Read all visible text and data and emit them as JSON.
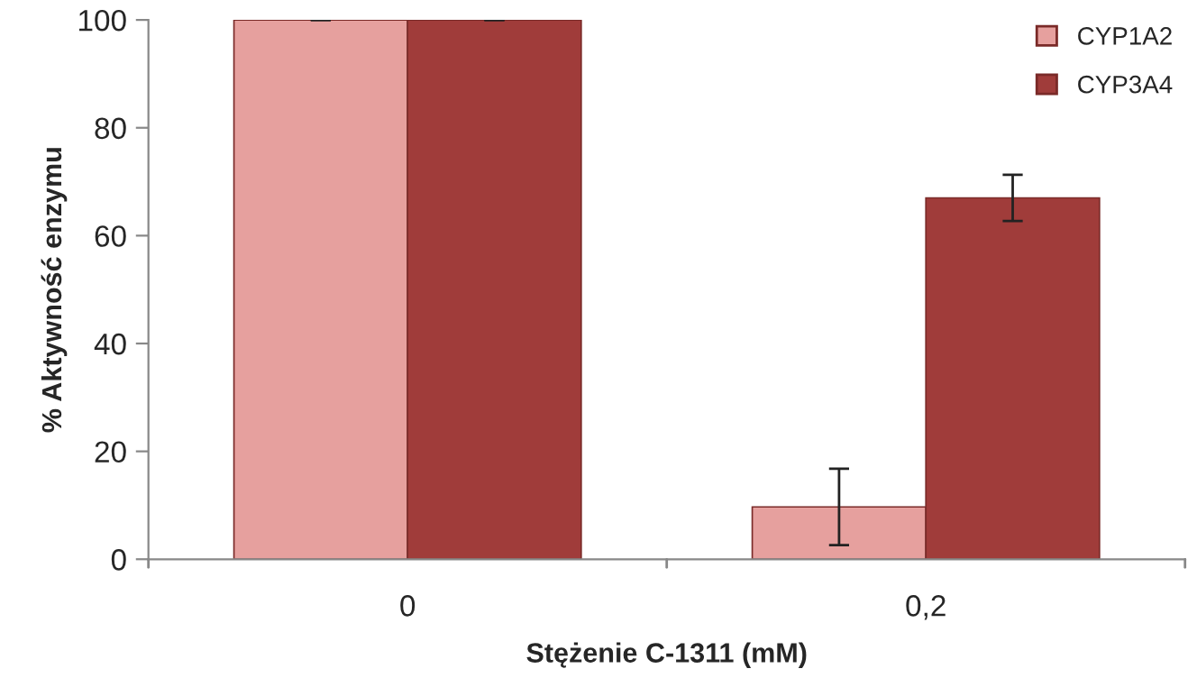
{
  "chart_data": {
    "type": "bar",
    "xlabel": "Stężenie C-1311 (mM)",
    "ylabel": "% Aktywność enzymu",
    "categories": [
      "0",
      "0,2"
    ],
    "series": [
      {
        "name": "CYP1A2",
        "color": "#e6a09e",
        "values": [
          100,
          9.7
        ],
        "errors": [
          0,
          7.1
        ]
      },
      {
        "name": "CYP3A4",
        "color": "#a03c3a",
        "values": [
          100,
          67.0
        ],
        "errors": [
          0,
          4.3
        ]
      }
    ],
    "ylim": [
      0,
      100
    ],
    "yticks": [
      0,
      20,
      40,
      60,
      80,
      100
    ],
    "grid": false,
    "legend": "top right"
  }
}
